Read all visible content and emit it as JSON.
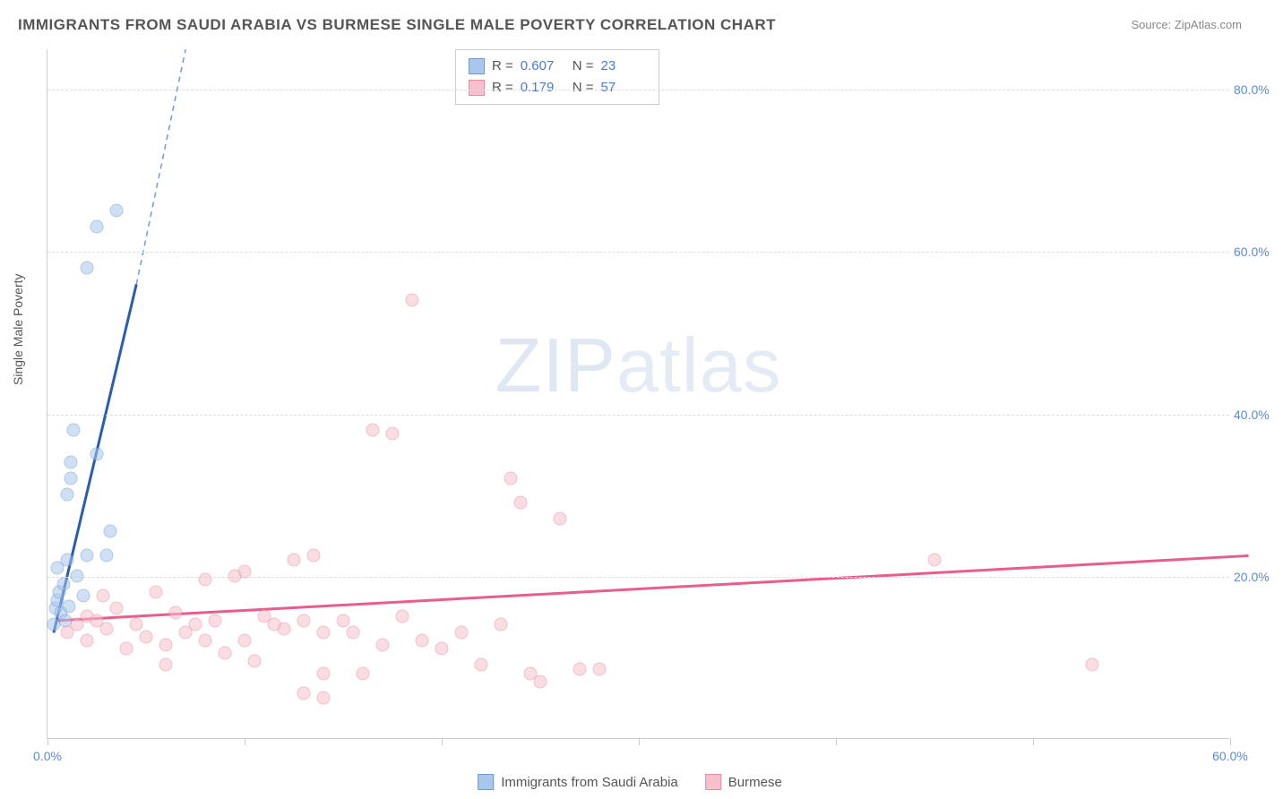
{
  "title": "IMMIGRANTS FROM SAUDI ARABIA VS BURMESE SINGLE MALE POVERTY CORRELATION CHART",
  "source": "Source: ZipAtlas.com",
  "ylabel": "Single Male Poverty",
  "watermark_bold": "ZIP",
  "watermark_thin": "atlas",
  "chart": {
    "type": "scatter",
    "xlim": [
      0,
      60
    ],
    "ylim": [
      0,
      85
    ],
    "background_color": "#ffffff",
    "grid_color": "#dddddd",
    "axis_color": "#cccccc",
    "tick_label_color": "#5b8bd4",
    "tick_fontsize": 14,
    "yticks": [
      20,
      40,
      60,
      80
    ],
    "ytick_labels": [
      "20.0%",
      "40.0%",
      "60.0%",
      "80.0%"
    ],
    "xticks": [
      0,
      10,
      20,
      30,
      40,
      50,
      60
    ],
    "xtick_labels": {
      "0": "0.0%",
      "60": "60.0%"
    },
    "marker_radius": 7.5,
    "marker_opacity": 0.55,
    "series": [
      {
        "name": "Immigrants from Saudi Arabia",
        "color_fill": "#a9c6ec",
        "color_stroke": "#6b9bd8",
        "trend_color": "#2a5db0",
        "trend_dash_color": "#6b9bd8",
        "R_label": "R =",
        "R": "0.607",
        "N_label": "N =",
        "N": "23",
        "trend": {
          "x1": 0.3,
          "y1": 13,
          "x2_solid": 4.5,
          "y2_solid": 56,
          "x2_dash": 7,
          "y2_dash": 85
        },
        "points": [
          [
            0.3,
            14
          ],
          [
            0.4,
            16
          ],
          [
            0.5,
            17
          ],
          [
            0.6,
            18
          ],
          [
            0.8,
            19
          ],
          [
            0.5,
            21
          ],
          [
            1.0,
            22
          ],
          [
            1.5,
            20
          ],
          [
            2.0,
            22.5
          ],
          [
            3.0,
            22.5
          ],
          [
            3.2,
            25.5
          ],
          [
            1.0,
            30
          ],
          [
            1.2,
            32
          ],
          [
            1.2,
            34
          ],
          [
            2.5,
            35
          ],
          [
            1.3,
            38
          ],
          [
            2.0,
            58
          ],
          [
            2.5,
            63
          ],
          [
            3.5,
            65
          ],
          [
            0.7,
            15.5
          ],
          [
            1.8,
            17.5
          ],
          [
            0.9,
            14.5
          ],
          [
            1.1,
            16.2
          ]
        ]
      },
      {
        "name": "Burmese",
        "color_fill": "#f6c1cd",
        "color_stroke": "#e88aa2",
        "trend_color": "#e85d8a",
        "R_label": "R =",
        "R": "0.179",
        "N_label": "N =",
        "N": "57",
        "trend": {
          "x1": 0.5,
          "y1": 14.5,
          "x2_solid": 61,
          "y2_solid": 22.5
        },
        "points": [
          [
            1.0,
            13
          ],
          [
            1.5,
            14
          ],
          [
            2.0,
            15
          ],
          [
            2.5,
            14.5
          ],
          [
            3.0,
            13.5
          ],
          [
            3.5,
            16
          ],
          [
            2.0,
            12
          ],
          [
            4.0,
            11
          ],
          [
            5.0,
            12.5
          ],
          [
            6.0,
            11.5
          ],
          [
            7.0,
            13
          ],
          [
            8.0,
            12
          ],
          [
            9.0,
            10.5
          ],
          [
            10.0,
            12
          ],
          [
            5.5,
            18
          ],
          [
            6.5,
            15.5
          ],
          [
            7.5,
            14
          ],
          [
            8.5,
            14.5
          ],
          [
            10.5,
            9.5
          ],
          [
            11.0,
            15
          ],
          [
            12.0,
            13.5
          ],
          [
            13.0,
            14.5
          ],
          [
            14.0,
            13
          ],
          [
            15.0,
            14.5
          ],
          [
            16.0,
            8
          ],
          [
            14.0,
            8
          ],
          [
            12.5,
            22
          ],
          [
            10.0,
            20.5
          ],
          [
            8.0,
            19.5
          ],
          [
            13.5,
            22.5
          ],
          [
            15.5,
            13
          ],
          [
            17.0,
            11.5
          ],
          [
            18.0,
            15
          ],
          [
            19.0,
            12
          ],
          [
            20.0,
            11
          ],
          [
            16.5,
            38
          ],
          [
            17.5,
            37.5
          ],
          [
            18.5,
            54
          ],
          [
            22.0,
            9
          ],
          [
            23.0,
            14
          ],
          [
            24.0,
            29
          ],
          [
            25.0,
            7
          ],
          [
            26.0,
            27
          ],
          [
            27.0,
            8.5
          ],
          [
            21.0,
            13
          ],
          [
            14.0,
            5
          ],
          [
            13.0,
            5.5
          ],
          [
            23.5,
            32
          ],
          [
            24.5,
            8
          ],
          [
            28.0,
            8.5
          ],
          [
            45.0,
            22
          ],
          [
            53.0,
            9
          ],
          [
            2.8,
            17.5
          ],
          [
            4.5,
            14
          ],
          [
            6.0,
            9
          ],
          [
            9.5,
            20
          ],
          [
            11.5,
            14
          ]
        ]
      }
    ]
  },
  "bottom_legend": [
    {
      "label": "Immigrants from Saudi Arabia",
      "fill": "#a9c6ec",
      "stroke": "#6b9bd8"
    },
    {
      "label": "Burmese",
      "fill": "#f6c1cd",
      "stroke": "#e88aa2"
    }
  ]
}
